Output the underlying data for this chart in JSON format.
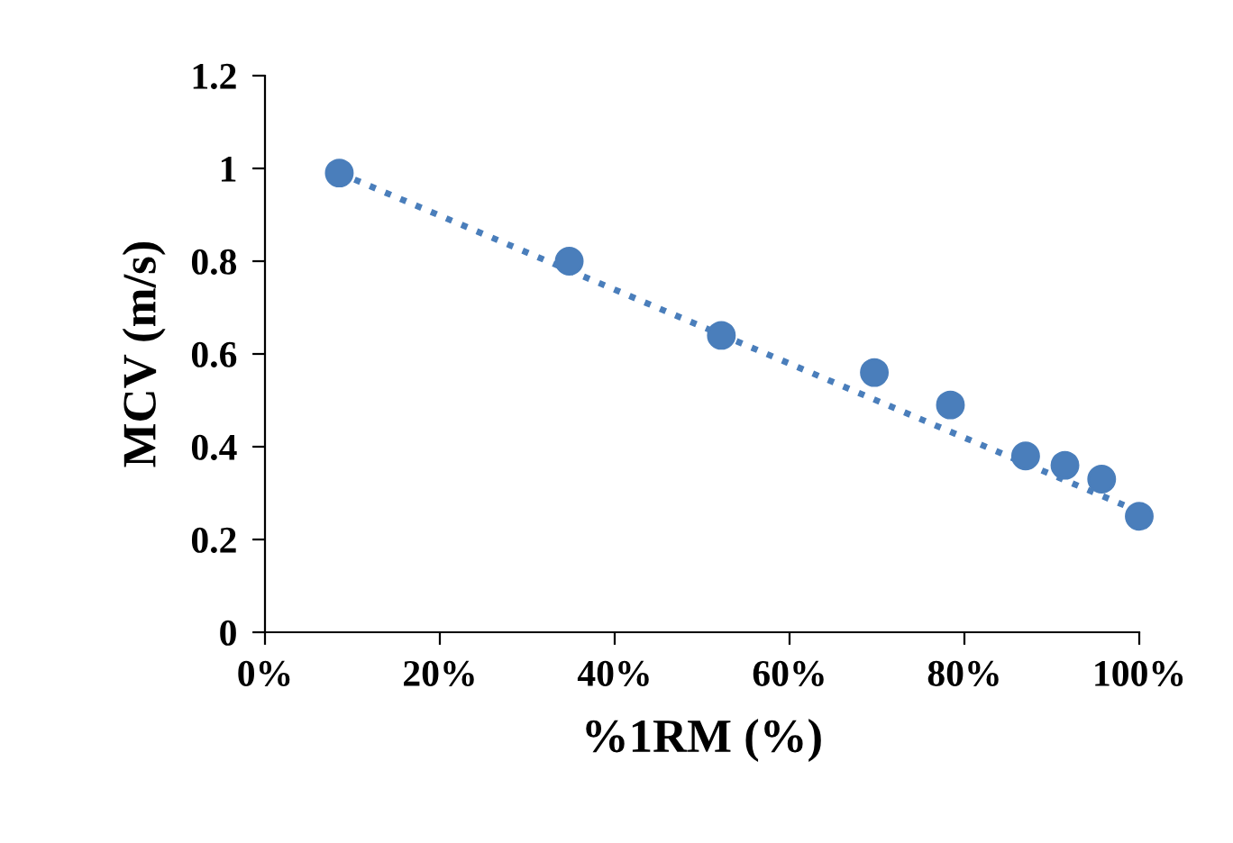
{
  "chart_data": {
    "type": "scatter",
    "xlabel": "%1RM (%)",
    "ylabel": "MCV (m/s)",
    "series": [
      {
        "color": "#4a7ebb",
        "x": [
          8.5,
          34.8,
          52.2,
          69.7,
          78.4,
          87,
          91.5,
          95.7,
          100
        ],
        "values": [
          0.99,
          0.8,
          0.64,
          0.56,
          0.49,
          0.38,
          0.36,
          0.33,
          0.25
        ],
        "marker": "circle"
      },
      {
        "type": "line",
        "color": "#4a7ebb",
        "x": [
          8.5,
          100
        ],
        "values": [
          0.99,
          0.26
        ],
        "line_style": "dotted"
      }
    ],
    "xlim": [
      0,
      100
    ],
    "ylim": [
      0,
      1.2
    ],
    "xticks": [
      {
        "value": 0,
        "label": "0%"
      },
      {
        "value": 20,
        "label": "20%"
      },
      {
        "value": 40,
        "label": "40%"
      },
      {
        "value": 60,
        "label": "60%"
      },
      {
        "value": 80,
        "label": "80%"
      },
      {
        "value": 100,
        "label": "100%"
      }
    ],
    "yticks": [
      0,
      0.2,
      0.4,
      0.6,
      0.8,
      1,
      1.2
    ],
    "grid": false,
    "legend": false
  }
}
